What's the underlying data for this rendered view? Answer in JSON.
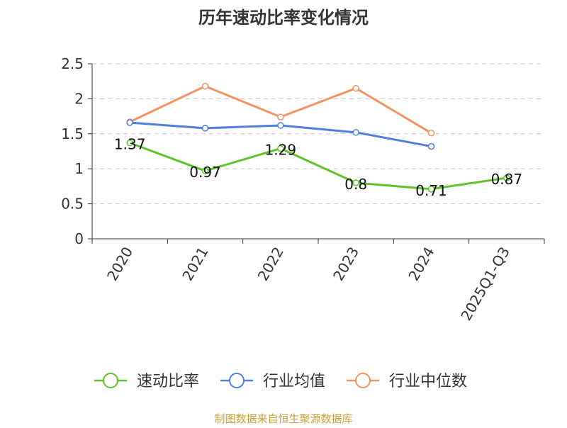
{
  "chart_data": {
    "type": "line",
    "title": "历年速动比率变化情况",
    "categories": [
      "2020",
      "2021",
      "2022",
      "2023",
      "2024",
      "2025Q1-Q3"
    ],
    "ylim": [
      0,
      2.5
    ],
    "yticks": [
      "0",
      "0.5",
      "1",
      "1.5",
      "2",
      "2.5"
    ],
    "grid": true,
    "legend_position": "bottom",
    "series": [
      {
        "name": "速动比率",
        "color": "#5ec42b",
        "values": [
          1.37,
          0.97,
          1.29,
          0.8,
          0.71,
          0.87
        ],
        "labels": [
          "1.37",
          "0.97",
          "1.29",
          "0.8",
          "0.71",
          "0.87"
        ]
      },
      {
        "name": "行业均值",
        "color": "#4e7fdc",
        "values": [
          1.66,
          1.58,
          1.62,
          1.52,
          1.32,
          null
        ]
      },
      {
        "name": "行业中位数",
        "color": "#f59361",
        "values": [
          1.67,
          2.18,
          1.74,
          2.15,
          1.51,
          null
        ]
      }
    ],
    "source": "制图数据来自恒生聚源数据库"
  }
}
